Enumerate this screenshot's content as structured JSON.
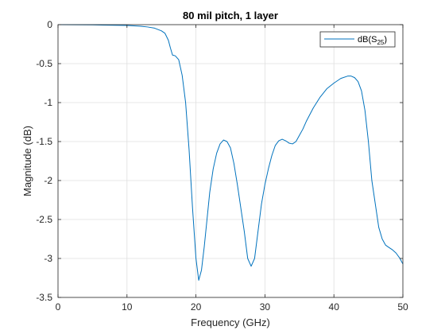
{
  "chart_data": {
    "type": "line",
    "title": "80 mil pitch, 1 layer",
    "xlabel": "Frequency (GHz)",
    "ylabel": "Magnitude (dB)",
    "xlim": [
      0,
      50
    ],
    "ylim": [
      -3.5,
      0
    ],
    "xticks": [
      0,
      10,
      20,
      30,
      40,
      50
    ],
    "xtick_labels": [
      "0",
      "10",
      "20",
      "30",
      "40",
      "50"
    ],
    "yticks": [
      0,
      -0.5,
      -1,
      -1.5,
      -2,
      -2.5,
      -3,
      -3.5
    ],
    "ytick_labels": [
      "0",
      "-0.5",
      "-1",
      "-1.5",
      "-2",
      "-2.5",
      "-3",
      "-3.5"
    ],
    "grid": true,
    "legend_position": "top-right",
    "series": [
      {
        "name": "dB(S25)",
        "legend_main": "dB(S",
        "legend_sub": "25",
        "legend_close": ")",
        "color": "#0072bd",
        "x": [
          0,
          5,
          10,
          12,
          13,
          14,
          15,
          15.5,
          16,
          16.3,
          16.6,
          17,
          17.5,
          18,
          18.5,
          19,
          19.5,
          20,
          20.4,
          20.8,
          21.2,
          21.6,
          22,
          22.5,
          23,
          23.5,
          24,
          24.5,
          25,
          25.5,
          26,
          26.5,
          27,
          27.5,
          28,
          28.5,
          29,
          29.5,
          30,
          30.5,
          31,
          31.5,
          32,
          32.5,
          33,
          33.5,
          34,
          34.5,
          35,
          35.5,
          36,
          37,
          38,
          39,
          40,
          41,
          42,
          42.5,
          43,
          43.5,
          44,
          44.5,
          45,
          45.5,
          46,
          46.5,
          47,
          47.5,
          48,
          48.5,
          49,
          49.5,
          50
        ],
        "y": [
          0,
          -0.003,
          -0.01,
          -0.02,
          -0.03,
          -0.045,
          -0.08,
          -0.11,
          -0.2,
          -0.3,
          -0.39,
          -0.4,
          -0.45,
          -0.65,
          -1.0,
          -1.6,
          -2.35,
          -3.0,
          -3.28,
          -3.15,
          -2.85,
          -2.5,
          -2.15,
          -1.85,
          -1.65,
          -1.53,
          -1.48,
          -1.5,
          -1.58,
          -1.78,
          -2.05,
          -2.35,
          -2.65,
          -3.0,
          -3.1,
          -3.0,
          -2.65,
          -2.3,
          -2.05,
          -1.85,
          -1.68,
          -1.55,
          -1.49,
          -1.47,
          -1.49,
          -1.52,
          -1.53,
          -1.5,
          -1.42,
          -1.34,
          -1.24,
          -1.07,
          -0.93,
          -0.82,
          -0.75,
          -0.69,
          -0.66,
          -0.66,
          -0.68,
          -0.73,
          -0.85,
          -1.1,
          -1.5,
          -2.0,
          -2.3,
          -2.6,
          -2.75,
          -2.83,
          -2.86,
          -2.89,
          -2.93,
          -2.99,
          -3.07
        ]
      }
    ]
  }
}
